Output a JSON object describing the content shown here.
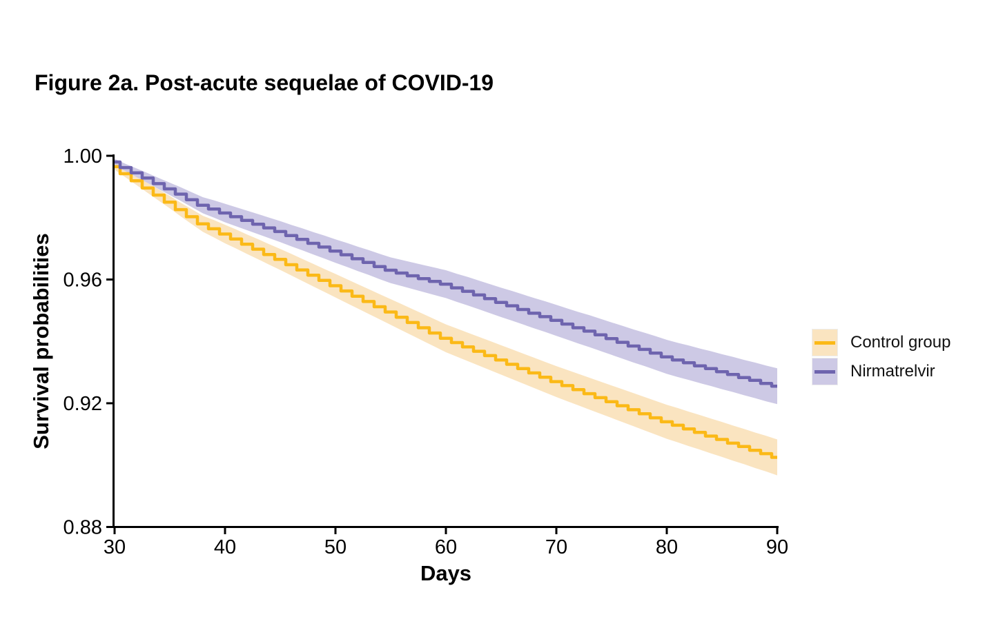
{
  "chart_data": {
    "type": "line",
    "subtype": "kaplan-meier-step",
    "title": "Figure 2a. Post-acute sequelae of COVID-19",
    "xlabel": "Days",
    "ylabel": "Survival probabilities",
    "xlim": [
      30,
      90
    ],
    "ylim": [
      0.88,
      1.0
    ],
    "grid": false,
    "legend_position": "right",
    "x_ticks": [
      30,
      40,
      50,
      60,
      70,
      80,
      90
    ],
    "y_ticks": [
      {
        "v": 1.0,
        "label": "1.00"
      },
      {
        "v": 0.96,
        "label": "0.96"
      },
      {
        "v": 0.92,
        "label": "0.92"
      },
      {
        "v": 0.88,
        "label": "0.88"
      }
    ],
    "x_start": 30,
    "x_step": 1,
    "series": [
      {
        "name": "Control group",
        "color": "#FBB917",
        "band_color": "#FAE4C0",
        "values": [
          0.9965,
          0.9942,
          0.9919,
          0.9896,
          0.9873,
          0.985,
          0.9826,
          0.9803,
          0.978,
          0.9764,
          0.9747,
          0.9731,
          0.9714,
          0.9698,
          0.9681,
          0.9665,
          0.9648,
          0.9631,
          0.9614,
          0.9597,
          0.958,
          0.9563,
          0.9546,
          0.9529,
          0.9512,
          0.9495,
          0.9478,
          0.9461,
          0.9444,
          0.9427,
          0.941,
          0.9396,
          0.9382,
          0.9368,
          0.9354,
          0.934,
          0.9326,
          0.9312,
          0.9298,
          0.9284,
          0.927,
          0.9257,
          0.9244,
          0.9231,
          0.9218,
          0.9205,
          0.9192,
          0.9179,
          0.9166,
          0.9153,
          0.914,
          0.9129,
          0.9117,
          0.9106,
          0.9094,
          0.9083,
          0.9071,
          0.906,
          0.9048,
          0.9037,
          0.9025
        ]
      },
      {
        "name": "Nirmatrelvir",
        "color": "#6E64AE",
        "band_color": "#CDC9E5",
        "values": [
          0.998,
          0.9962,
          0.9945,
          0.9928,
          0.991,
          0.9893,
          0.9876,
          0.9858,
          0.984,
          0.9828,
          0.9815,
          0.9803,
          0.9791,
          0.9779,
          0.9767,
          0.9755,
          0.9742,
          0.973,
          0.9717,
          0.9705,
          0.9692,
          0.968,
          0.9667,
          0.9655,
          0.9642,
          0.963,
          0.9621,
          0.9612,
          0.9603,
          0.9594,
          0.9585,
          0.9573,
          0.9562,
          0.955,
          0.9538,
          0.9526,
          0.9515,
          0.9503,
          0.9491,
          0.948,
          0.9468,
          0.9456,
          0.9444,
          0.9433,
          0.9421,
          0.9409,
          0.9397,
          0.9385,
          0.9374,
          0.9362,
          0.935,
          0.934,
          0.9331,
          0.9321,
          0.9312,
          0.9302,
          0.9293,
          0.9283,
          0.9274,
          0.9264,
          0.9255
        ]
      }
    ],
    "ci_halfwidth": {
      "x": [
        30,
        40,
        50,
        60,
        70,
        80,
        90
      ],
      "hw": [
        0.001,
        0.003,
        0.0038,
        0.0045,
        0.005,
        0.0055,
        0.0058
      ]
    }
  }
}
